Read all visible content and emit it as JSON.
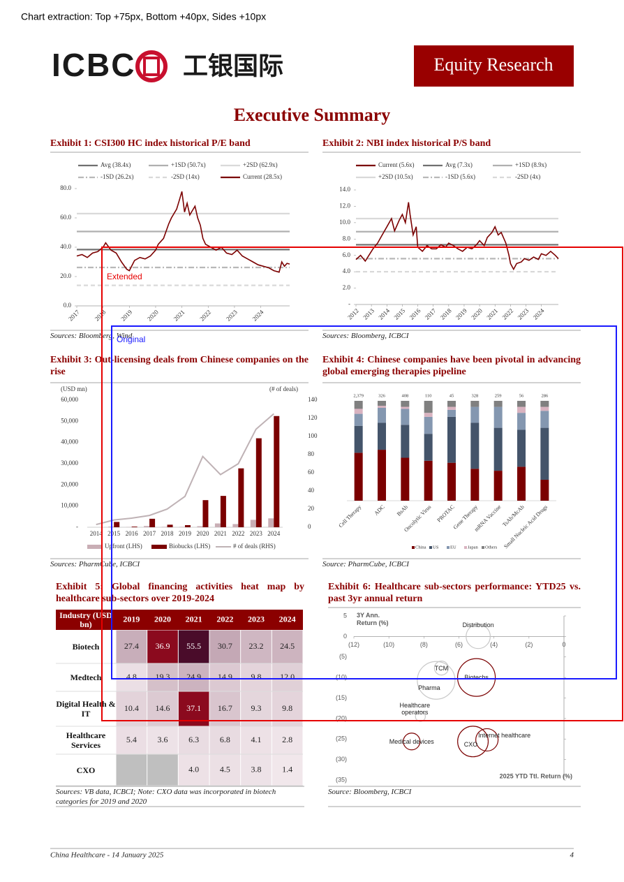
{
  "annotations": {
    "extraction": "Chart extraction: Top +75px, Bottom +40px, Sides +10px",
    "extended": "Extended",
    "original": "Original"
  },
  "header": {
    "logo_text": "ICBC",
    "logo_cn": "工银国际",
    "badge": "Equity Research"
  },
  "title": "Executive Summary",
  "footer": {
    "left": "China Healthcare - 14 January 2025",
    "page": "4"
  },
  "chart_data": [
    {
      "type": "line",
      "title": "Exhibit 1: CSI300 HC index historical P/E band",
      "source": "Sources: Bloomberg, Wind",
      "xlim": [
        2017,
        2025.1
      ],
      "xticks": [
        2017,
        2018,
        2019,
        2020,
        2021,
        2022,
        2023,
        2024
      ],
      "ylim": [
        0,
        80
      ],
      "yticks": [
        {
          "value": 0,
          "label": "0.0"
        },
        {
          "value": 20,
          "label": "20.0"
        },
        {
          "value": 40,
          "label": "40.0"
        },
        {
          "value": 60,
          "label": "60.0"
        },
        {
          "value": 80,
          "label": "80.0"
        }
      ],
      "x": [
        2017.0,
        2017.2,
        2017.4,
        2017.6,
        2017.8,
        2018.0,
        2018.1,
        2018.3,
        2018.5,
        2018.7,
        2018.9,
        2019.0,
        2019.2,
        2019.4,
        2019.6,
        2019.8,
        2020.0,
        2020.1,
        2020.3,
        2020.5,
        2020.6,
        2020.8,
        2020.9,
        2021.0,
        2021.1,
        2021.2,
        2021.3,
        2021.5,
        2021.6,
        2021.7,
        2021.8,
        2021.9,
        2022.1,
        2022.3,
        2022.5,
        2022.7,
        2022.9,
        2023.1,
        2023.3,
        2023.5,
        2023.7,
        2023.9,
        2024.1,
        2024.3,
        2024.5,
        2024.7,
        2024.8,
        2024.9,
        2025.0,
        2025.1
      ],
      "series": [
        {
          "name": "Avg (38.4x)",
          "value": 38.4,
          "color": "#707070"
        },
        {
          "name": "+1SD (50.7x)",
          "value": 50.7,
          "color": "#b0b0b0"
        },
        {
          "name": "+2SD (62.9x)",
          "value": 62.9,
          "color": "#d9d9d9"
        },
        {
          "name": "-1SD (26.2x)",
          "value": 26.2,
          "color": "#b8b8b8",
          "dash": "dashdot"
        },
        {
          "name": "-2SD (14x)",
          "value": 14,
          "color": "#d9d9d9",
          "dash": "dashed"
        },
        {
          "name": "Current (28.5x)",
          "color": "#7b0000",
          "values": [
            34,
            35,
            33,
            36,
            37,
            40,
            43,
            38,
            36,
            30,
            25,
            24,
            31,
            33,
            32,
            34,
            38,
            42,
            46,
            56,
            60,
            66,
            72,
            78,
            64,
            70,
            62,
            68,
            60,
            55,
            46,
            42,
            40,
            38,
            40,
            36,
            35,
            38,
            34,
            32,
            30,
            28,
            27,
            26,
            24,
            23,
            30,
            27,
            29,
            28.5
          ]
        }
      ]
    },
    {
      "type": "line",
      "title": "Exhibit 2: NBI index historical P/S band",
      "source": "Sources: Bloomberg, ICBCI",
      "xlim": [
        2012,
        2025.1
      ],
      "xticks": [
        2012,
        2013,
        2014,
        2015,
        2016,
        2017,
        2018,
        2019,
        2020,
        2021,
        2022,
        2023,
        2024
      ],
      "ylim": [
        0,
        14
      ],
      "yticks": [
        {
          "value": 0,
          "label": "-"
        },
        {
          "value": 2,
          "label": "2.0"
        },
        {
          "value": 4,
          "label": "4.0"
        },
        {
          "value": 6,
          "label": "6.0"
        },
        {
          "value": 8,
          "label": "8.0"
        },
        {
          "value": 10,
          "label": "10.0"
        },
        {
          "value": 12,
          "label": "12.0"
        },
        {
          "value": 14,
          "label": "14.0"
        }
      ],
      "x": [
        2012.0,
        2012.3,
        2012.6,
        2012.9,
        2013.1,
        2013.4,
        2013.7,
        2014.0,
        2014.3,
        2014.5,
        2014.8,
        2015.0,
        2015.2,
        2015.4,
        2015.5,
        2015.7,
        2015.9,
        2016.0,
        2016.3,
        2016.6,
        2016.9,
        2017.2,
        2017.5,
        2017.8,
        2018.0,
        2018.3,
        2018.6,
        2018.9,
        2019.2,
        2019.5,
        2019.8,
        2020.0,
        2020.3,
        2020.5,
        2020.8,
        2021.0,
        2021.2,
        2021.4,
        2021.7,
        2021.9,
        2022.0,
        2022.2,
        2022.4,
        2022.7,
        2022.9,
        2023.2,
        2023.5,
        2023.8,
        2024.0,
        2024.3,
        2024.6,
        2024.9,
        2025.1
      ],
      "series": [
        {
          "name": "Current (5.6x)",
          "color": "#7b0000",
          "values": [
            5.5,
            6.0,
            5.3,
            6.2,
            6.8,
            7.5,
            8.5,
            9.5,
            10.5,
            9.0,
            10.3,
            11.0,
            10.0,
            12.5,
            11.0,
            8.5,
            9.5,
            7.0,
            6.5,
            7.2,
            6.8,
            6.8,
            7.3,
            7.0,
            7.5,
            7.2,
            6.8,
            6.5,
            7.0,
            6.8,
            7.3,
            7.8,
            7.2,
            8.2,
            8.8,
            9.5,
            8.5,
            8.8,
            7.5,
            6.0,
            5.0,
            4.3,
            5.0,
            5.2,
            5.6,
            5.4,
            5.8,
            5.5,
            6.2,
            6.0,
            6.5,
            6.0,
            5.6
          ]
        },
        {
          "name": "Avg (7.3x)",
          "value": 7.3,
          "color": "#707070"
        },
        {
          "name": "+1SD (8.9x)",
          "value": 8.9,
          "color": "#b0b0b0"
        },
        {
          "name": "+2SD (10.5x)",
          "value": 10.5,
          "color": "#d9d9d9"
        },
        {
          "name": "-1SD (5.6x)",
          "value": 5.6,
          "color": "#b8b8b8",
          "dash": "dashdot"
        },
        {
          "name": "-2SD (4x)",
          "value": 4,
          "color": "#d9d9d9",
          "dash": "dashed"
        }
      ]
    },
    {
      "type": "bar_line",
      "title": "Exhibit 3: Out-licensing deals from Chinese companies on the rise",
      "source": "Sources: PharmCube, ICBCI",
      "ylabel": "(USD mn)",
      "y2label": "(# of deals)",
      "categories": [
        "2014",
        "2015",
        "2016",
        "2017",
        "2018",
        "2019",
        "2020",
        "2021",
        "2022",
        "2023",
        "2024"
      ],
      "ylim": [
        0,
        60000
      ],
      "yticks": [
        {
          "value": 0,
          "label": "-"
        },
        {
          "value": 10000,
          "label": "10,000"
        },
        {
          "value": 20000,
          "label": "20,000"
        },
        {
          "value": 30000,
          "label": "30,000"
        },
        {
          "value": 40000,
          "label": "40,000"
        },
        {
          "value": 50000,
          "label": "50,000"
        },
        {
          "value": 60000,
          "label": "60,000"
        }
      ],
      "y2lim": [
        0,
        140
      ],
      "y2ticks": [
        0,
        20,
        40,
        60,
        80,
        100,
        120,
        140
      ],
      "series": [
        {
          "name": "Upfront (LHS)",
          "type": "bar",
          "color": "#c9aeb5",
          "values": [
            0,
            300,
            100,
            600,
            200,
            200,
            500,
            1800,
            1500,
            3500,
            4200
          ]
        },
        {
          "name": "Biobucks (LHS)",
          "type": "bar",
          "color": "#7b0000",
          "values": [
            0,
            2500,
            300,
            4000,
            1200,
            1000,
            12800,
            14800,
            27800,
            42000,
            52500
          ]
        },
        {
          "name": "# of deals (RHS)",
          "type": "line",
          "axis": "y2",
          "color": "#bfb2b5",
          "values": [
            3,
            8,
            10,
            13,
            20,
            34,
            78,
            58,
            70,
            108,
            125
          ]
        }
      ]
    },
    {
      "type": "stacked_bar",
      "title": "Exhibit 4: Chinese companies have been pivotal in advancing global emerging therapies pipeline",
      "source": "Source: PharmCube, ICBCI",
      "categories": [
        "Cell Therapy",
        "ADC",
        "BsAb",
        "Oncolytic Virus",
        "PROTAC",
        "Gene Therapy",
        "mRNA Vaccine",
        "TsAb/McAb",
        "Small Nucleic Acid Drugs"
      ],
      "ylim": [
        0,
        100
      ],
      "totals": {
        "values": [
          2379,
          326,
          408,
          110,
          45,
          328,
          259,
          56,
          286
        ],
        "value_labels": [
          "2,379",
          "326",
          "408",
          "110",
          "45",
          "328",
          "259",
          "56",
          "286"
        ]
      },
      "series": [
        {
          "name": "China",
          "color": "#7b0000",
          "values": [
            48,
            51,
            43,
            40,
            38,
            32,
            30,
            34,
            21
          ]
        },
        {
          "name": "US",
          "color": "#44546a",
          "values": [
            27,
            27,
            33,
            27,
            46,
            46,
            43,
            37,
            52
          ]
        },
        {
          "name": "EU",
          "color": "#8497b0",
          "values": [
            12,
            15,
            16,
            17,
            7,
            16,
            21,
            17,
            17
          ]
        },
        {
          "name": "Japan",
          "color": "#d9b3c0",
          "values": [
            5,
            2,
            2,
            4,
            3,
            0,
            0,
            6,
            4
          ]
        },
        {
          "name": "Others",
          "color": "#808080",
          "values": [
            8,
            5,
            6,
            12,
            6,
            6,
            6,
            6,
            6
          ]
        }
      ]
    },
    {
      "type": "heatmap",
      "title": "Exhibit 5: Global financing activities heat map by healthcare sub-sectors over 2019-2024",
      "source": "Sources: VB data, ICBCI; Note: CXO data was incorporated in biotech categories for 2019 and 2020",
      "corner": "Industry (USD bn)",
      "categories": [
        "2019",
        "2020",
        "2021",
        "2022",
        "2023",
        "2024"
      ],
      "rows": [
        "Biotech",
        "Medtech",
        "Digital Health & IT",
        "Healthcare Services",
        "CXO"
      ],
      "values": [
        [
          27.4,
          36.9,
          55.5,
          30.7,
          23.2,
          24.5
        ],
        [
          4.8,
          19.3,
          24.9,
          14.9,
          9.8,
          12
        ],
        [
          10.4,
          14.6,
          37.1,
          16.7,
          9.3,
          9.8
        ],
        [
          5.4,
          3.6,
          6.3,
          6.8,
          4.1,
          2.8
        ],
        [
          null,
          null,
          4,
          4.5,
          3.8,
          1.4
        ]
      ],
      "value_labels": [
        [
          "27.4",
          "36.9",
          "55.5",
          "30.7",
          "23.2",
          "24.5"
        ],
        [
          "4.8",
          "19.3",
          "24.9",
          "14.9",
          "9.8",
          "12.0"
        ],
        [
          "10.4",
          "14.6",
          "37.1",
          "16.7",
          "9.3",
          "9.8"
        ],
        [
          "5.4",
          "3.6",
          "6.3",
          "6.8",
          "4.1",
          "2.8"
        ],
        [
          null,
          null,
          "4.0",
          "4.5",
          "3.8",
          "1.4"
        ]
      ]
    },
    {
      "type": "scatter",
      "title": "Exhibit 6: Healthcare sub-sectors performance: YTD25 vs. past 3yr annual return",
      "source": "Source: Bloomberg, ICBCI",
      "xlabel": "2025 YTD Ttl. Return (%)",
      "ylabel": "3Y Ann. Return (%)",
      "xlim": [
        -12,
        0
      ],
      "xticks": [
        {
          "value": -12,
          "label": "(12)"
        },
        {
          "value": -10,
          "label": "(10)"
        },
        {
          "value": -8,
          "label": "(8)"
        },
        {
          "value": -6,
          "label": "(6)"
        },
        {
          "value": -4,
          "label": "(4)"
        },
        {
          "value": -2,
          "label": "(2)"
        },
        0
      ],
      "ylim": [
        -35,
        5
      ],
      "yticks": [
        5,
        0,
        {
          "value": -5,
          "label": "(5)"
        },
        {
          "value": -10,
          "label": "(10)"
        },
        {
          "value": -15,
          "label": "(15)"
        },
        {
          "value": -20,
          "label": "(20)"
        },
        {
          "value": -25,
          "label": "(25)"
        },
        {
          "value": -30,
          "label": "(30)"
        },
        {
          "value": -35,
          "label": "(35)"
        }
      ],
      "labels": [
        "Distribution",
        "TCM",
        "Pharma",
        "Biotechs",
        "Healthcare operators",
        "Medical devices",
        "CXO",
        "Internet healthcare"
      ],
      "x": [
        -4.9,
        -7.0,
        -7.3,
        -5.0,
        -8.2,
        -8.7,
        -5.2,
        -4.4
      ],
      "values": [
        0,
        -7.7,
        -10.7,
        -10,
        -19.5,
        -25.6,
        -25.6,
        -25.2
      ],
      "sizes": [
        300,
        100,
        730,
        730,
        50,
        144,
        480,
        256
      ],
      "colors": [
        "#c8c8c8",
        "#c8c8c8",
        "#c8c8c8",
        "#7b0000",
        "#c8c8c8",
        "#7b0000",
        "#7b0000",
        "#7b0000"
      ]
    }
  ]
}
